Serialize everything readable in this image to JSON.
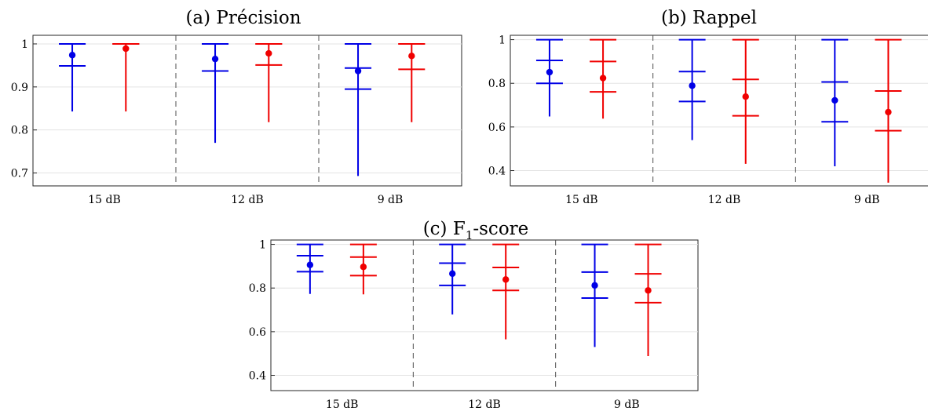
{
  "colors": {
    "blue": "#0000e6",
    "red": "#f00000"
  },
  "chart_data": [
    {
      "id": "a",
      "type": "errorbar",
      "title": "(a) Précision",
      "categories": [
        "15 dB",
        "12 dB",
        "9 dB"
      ],
      "ylim": [
        0.67,
        1.02
      ],
      "yticks": [
        0.7,
        0.8,
        0.9,
        1
      ],
      "ytick_labels": [
        "0.7",
        "0.8",
        "0.9",
        "1"
      ],
      "grid": true,
      "series": [
        {
          "color": "blue",
          "points": [
            {
              "category": "15 dB",
              "min": 0.843,
              "q1": 0.949,
              "mean": 0.974,
              "q3": 1.0,
              "max": 1.0
            },
            {
              "category": "12 dB",
              "min": 0.77,
              "q1": 0.937,
              "mean": 0.965,
              "q3": 1.0,
              "max": 1.0
            },
            {
              "category": "9 dB",
              "min": 0.693,
              "q1": 0.895,
              "mean": 0.937,
              "q3": 0.944,
              "max": 1.0
            }
          ]
        },
        {
          "color": "red",
          "points": [
            {
              "category": "15 dB",
              "min": 0.843,
              "q1": 1.0,
              "mean": 0.989,
              "q3": 1.0,
              "max": 1.0
            },
            {
              "category": "12 dB",
              "min": 0.818,
              "q1": 0.951,
              "mean": 0.978,
              "q3": 1.0,
              "max": 1.0
            },
            {
              "category": "9 dB",
              "min": 0.818,
              "q1": 0.941,
              "mean": 0.972,
              "q3": 1.0,
              "max": 1.0
            }
          ]
        }
      ]
    },
    {
      "id": "b",
      "type": "errorbar",
      "title": "(b) Rappel",
      "categories": [
        "15 dB",
        "12 dB",
        "9 dB"
      ],
      "ylim": [
        0.33,
        1.02
      ],
      "yticks": [
        0.4,
        0.6,
        0.8,
        1
      ],
      "ytick_labels": [
        "0.4",
        "0.6",
        "0.8",
        "1"
      ],
      "grid": true,
      "series": [
        {
          "color": "blue",
          "points": [
            {
              "category": "15 dB",
              "min": 0.648,
              "q1": 0.8,
              "mean": 0.851,
              "q3": 0.905,
              "max": 1.0
            },
            {
              "category": "12 dB",
              "min": 0.54,
              "q1": 0.717,
              "mean": 0.789,
              "q3": 0.854,
              "max": 1.0
            },
            {
              "category": "9 dB",
              "min": 0.42,
              "q1": 0.624,
              "mean": 0.722,
              "q3": 0.806,
              "max": 1.0
            }
          ]
        },
        {
          "color": "red",
          "points": [
            {
              "category": "15 dB",
              "min": 0.638,
              "q1": 0.761,
              "mean": 0.824,
              "q3": 0.9,
              "max": 1.0
            },
            {
              "category": "12 dB",
              "min": 0.431,
              "q1": 0.651,
              "mean": 0.739,
              "q3": 0.818,
              "max": 1.0
            },
            {
              "category": "9 dB",
              "min": 0.345,
              "q1": 0.583,
              "mean": 0.668,
              "q3": 0.765,
              "max": 1.0
            }
          ]
        }
      ]
    },
    {
      "id": "c",
      "type": "errorbar",
      "title": "(c) F",
      "title_sub": "1",
      "title_suffix": "-score",
      "categories": [
        "15 dB",
        "12 dB",
        "9 dB"
      ],
      "ylim": [
        0.33,
        1.02
      ],
      "yticks": [
        0.4,
        0.6,
        0.8,
        1
      ],
      "ytick_labels": [
        "0.4",
        "0.6",
        "0.8",
        "1"
      ],
      "grid": true,
      "series": [
        {
          "color": "blue",
          "points": [
            {
              "category": "15 dB",
              "min": 0.773,
              "q1": 0.875,
              "mean": 0.906,
              "q3": 0.948,
              "max": 1.0
            },
            {
              "category": "12 dB",
              "min": 0.679,
              "q1": 0.812,
              "mean": 0.866,
              "q3": 0.914,
              "max": 1.0
            },
            {
              "category": "9 dB",
              "min": 0.53,
              "q1": 0.754,
              "mean": 0.812,
              "q3": 0.873,
              "max": 1.0
            }
          ]
        },
        {
          "color": "red",
          "points": [
            {
              "category": "15 dB",
              "min": 0.771,
              "q1": 0.857,
              "mean": 0.897,
              "q3": 0.942,
              "max": 1.0
            },
            {
              "category": "12 dB",
              "min": 0.565,
              "q1": 0.789,
              "mean": 0.839,
              "q3": 0.894,
              "max": 1.0
            },
            {
              "category": "9 dB",
              "min": 0.488,
              "q1": 0.733,
              "mean": 0.789,
              "q3": 0.865,
              "max": 1.0
            }
          ]
        }
      ]
    }
  ]
}
